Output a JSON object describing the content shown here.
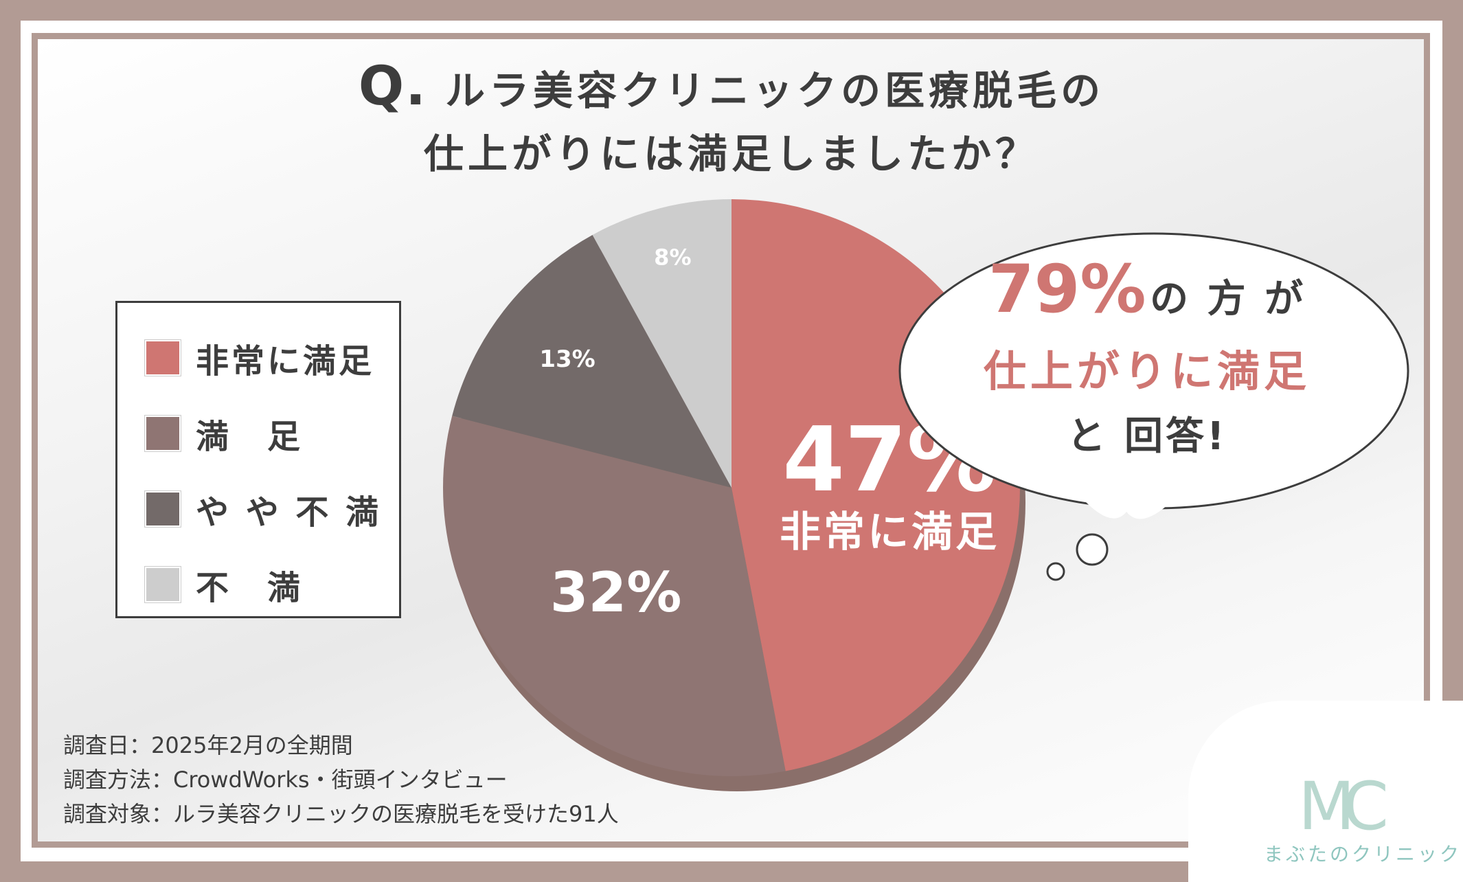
{
  "title_q": "Q.",
  "title_line1": "ルラ美容クリニックの医療脱毛の",
  "title_line2": "仕上がりには満足しましたか？",
  "chart_data": {
    "type": "pie",
    "categories": [
      "非常に満足",
      "満足",
      "やや不満",
      "不満"
    ],
    "values": [
      47,
      32,
      13,
      8
    ],
    "value_labels": [
      "47%",
      "32%",
      "13%",
      "8%"
    ],
    "inner_label_top": "非常に満足",
    "colors": [
      "#cf7672",
      "#8f7573",
      "#736a69",
      "#cdcdcd"
    ],
    "legend": {
      "placement": "left",
      "entries": [
        "非常に満足",
        "満　足",
        "や や 不 満",
        "不　満"
      ]
    }
  },
  "callout": {
    "pct": "79%",
    "line1_suffix": "の 方 が",
    "line2": "仕上がりに満足",
    "line3": "と 回答!"
  },
  "notes": [
    "調査日：2025年2月の全期間",
    "調査方法：CrowdWorks・街頭インタビュー",
    "調査対象：ルラ美容クリニックの医療脱毛を受けた91人"
  ],
  "logo": {
    "mark": "MC",
    "name": "まぶたのクリニック",
    "accent": "#8fc6bf"
  }
}
